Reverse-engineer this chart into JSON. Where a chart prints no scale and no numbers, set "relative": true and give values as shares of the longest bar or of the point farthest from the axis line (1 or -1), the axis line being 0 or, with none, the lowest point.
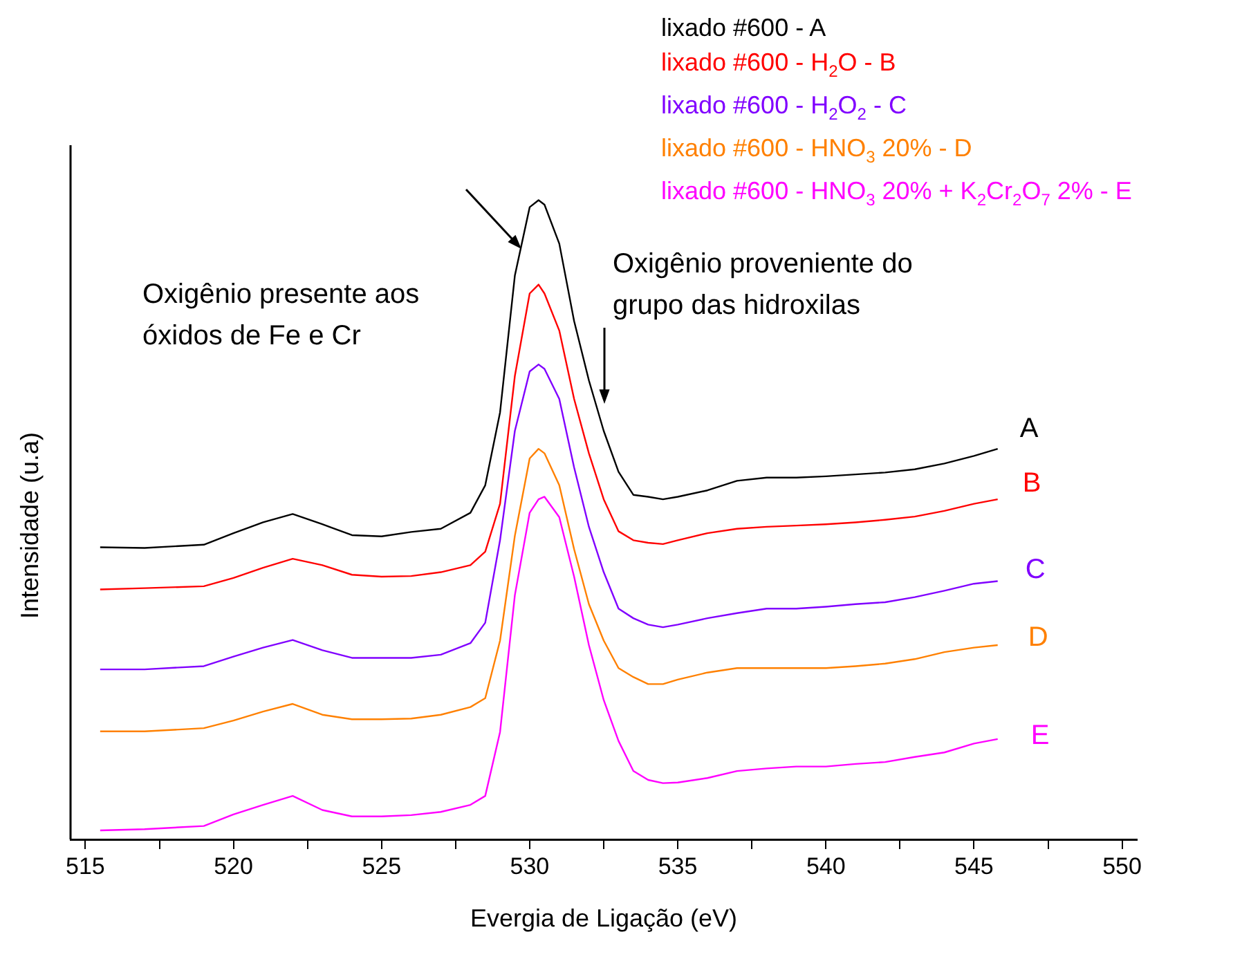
{
  "chart_data": {
    "type": "line",
    "relative": true,
    "xlabel": "Evergia de Ligação (eV)",
    "ylabel": "Intensidade (u.a)",
    "xlim": [
      514.5,
      550.5
    ],
    "xticks": [
      515,
      {
        "value": 517.5,
        "label": null
      },
      520,
      {
        "value": 522.5,
        "label": null
      },
      525,
      {
        "value": 527.5,
        "label": null
      },
      530,
      {
        "value": 532.5,
        "label": null
      },
      535,
      {
        "value": 537.5,
        "label": null
      },
      540,
      {
        "value": 542.5,
        "label": null
      },
      545,
      {
        "value": 547.5,
        "label": null
      },
      550
    ],
    "x": [
      515.5,
      517,
      519,
      520,
      521,
      522,
      523,
      524,
      525,
      526,
      527,
      528,
      528.5,
      529,
      529.5,
      530,
      530.3,
      530.5,
      531,
      531.5,
      532,
      532.5,
      533,
      533.5,
      534,
      534.5,
      535,
      536,
      537,
      538,
      539,
      540,
      541,
      542,
      543,
      544,
      545,
      545.8
    ],
    "series": [
      {
        "name": "lixado #600 - A",
        "color": "#000000",
        "values": [
          0.457,
          0.456,
          0.461,
          0.479,
          0.496,
          0.509,
          0.493,
          0.476,
          0.474,
          0.481,
          0.486,
          0.511,
          0.554,
          0.668,
          0.882,
          0.989,
          1.0,
          0.993,
          0.932,
          0.811,
          0.718,
          0.639,
          0.575,
          0.539,
          0.536,
          0.532,
          0.536,
          0.546,
          0.561,
          0.566,
          0.566,
          0.568,
          0.571,
          0.574,
          0.579,
          0.588,
          0.6,
          0.611
        ]
      },
      {
        "name": "lixado #600 - H$_{2}$O - B",
        "color": "#ff0000",
        "values": [
          0.391,
          0.393,
          0.396,
          0.409,
          0.425,
          0.439,
          0.429,
          0.414,
          0.411,
          0.412,
          0.418,
          0.429,
          0.45,
          0.525,
          0.725,
          0.854,
          0.868,
          0.854,
          0.796,
          0.689,
          0.604,
          0.532,
          0.482,
          0.468,
          0.464,
          0.462,
          0.468,
          0.479,
          0.486,
          0.489,
          0.491,
          0.493,
          0.496,
          0.5,
          0.505,
          0.514,
          0.525,
          0.532
        ]
      },
      {
        "name": "lixado #600 - H$_{2}$O$_{2}$ - C",
        "color": "#8000ff",
        "values": [
          0.266,
          0.266,
          0.271,
          0.286,
          0.3,
          0.312,
          0.296,
          0.284,
          0.284,
          0.284,
          0.289,
          0.307,
          0.339,
          0.468,
          0.639,
          0.732,
          0.743,
          0.736,
          0.689,
          0.582,
          0.489,
          0.418,
          0.361,
          0.346,
          0.336,
          0.332,
          0.336,
          0.346,
          0.354,
          0.361,
          0.361,
          0.364,
          0.368,
          0.371,
          0.379,
          0.389,
          0.4,
          0.404
        ]
      },
      {
        "name": "lixado #600 - HNO$_{3}$ 20% - D",
        "color": "#ff8000",
        "values": [
          0.169,
          0.169,
          0.174,
          0.186,
          0.2,
          0.212,
          0.195,
          0.188,
          0.188,
          0.189,
          0.195,
          0.207,
          0.221,
          0.311,
          0.475,
          0.596,
          0.611,
          0.604,
          0.554,
          0.454,
          0.368,
          0.311,
          0.268,
          0.254,
          0.243,
          0.243,
          0.25,
          0.261,
          0.268,
          0.268,
          0.268,
          0.268,
          0.271,
          0.275,
          0.282,
          0.293,
          0.3,
          0.304
        ]
      },
      {
        "name": "lixado #600 - HNO$_{3}$ 20% + K$_{2}$Cr$_{2}$O$_{7}$ 2% - E",
        "color": "#ff00ff",
        "values": [
          0.014,
          0.016,
          0.021,
          0.039,
          0.054,
          0.068,
          0.046,
          0.036,
          0.036,
          0.038,
          0.043,
          0.054,
          0.068,
          0.168,
          0.382,
          0.511,
          0.532,
          0.536,
          0.504,
          0.411,
          0.304,
          0.218,
          0.154,
          0.107,
          0.093,
          0.088,
          0.089,
          0.096,
          0.107,
          0.111,
          0.114,
          0.114,
          0.118,
          0.121,
          0.129,
          0.136,
          0.15,
          0.157
        ]
      }
    ],
    "annotations": [
      "A",
      "B",
      "C",
      "D",
      "E",
      "Oxigênio presente aos\nóxidos de Fe e Cr",
      "Oxigênio proveniente do\ngrupo das hidroxilas"
    ],
    "legend": "top right",
    "grid": false,
    "marker": "none",
    "line_style": "solid"
  }
}
